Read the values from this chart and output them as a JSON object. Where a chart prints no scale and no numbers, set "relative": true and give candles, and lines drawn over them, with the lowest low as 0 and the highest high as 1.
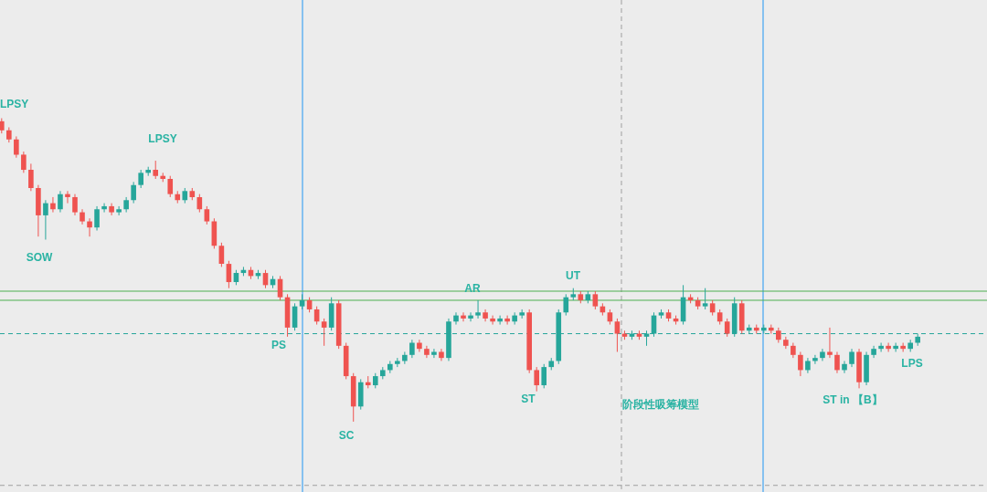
{
  "chart_data": {
    "type": "candlestick",
    "relative": true,
    "categories": [
      null,
      null,
      null,
      null,
      null,
      null,
      null,
      null,
      null,
      null,
      null,
      null,
      null,
      null,
      null,
      null,
      null,
      null,
      null,
      null,
      null,
      null,
      null,
      null,
      null,
      null,
      null,
      null,
      null,
      null,
      null,
      null,
      null,
      null,
      null,
      null,
      null,
      null,
      null,
      null,
      null,
      null,
      null,
      null,
      null,
      null,
      null,
      null,
      null,
      null,
      null,
      null,
      null,
      null,
      null,
      null,
      null,
      null,
      null,
      null,
      null,
      null,
      null,
      null,
      null,
      null,
      null,
      null,
      null,
      null,
      null,
      null,
      null,
      null,
      null,
      null,
      null,
      null,
      null,
      null,
      null,
      null,
      null,
      null,
      null,
      null,
      null,
      null,
      null,
      null,
      null,
      null,
      null,
      null,
      null,
      null,
      null,
      null,
      null,
      null,
      null,
      null,
      null,
      null,
      null,
      null,
      null,
      null,
      null,
      null,
      null,
      null,
      null,
      null,
      null,
      null,
      null,
      null,
      null,
      null,
      null,
      null,
      null,
      null,
      null,
      null
    ],
    "ohlc": [
      [
        0.99,
        1.0,
        0.95,
        0.96
      ],
      [
        0.96,
        0.97,
        0.92,
        0.93
      ],
      [
        0.93,
        0.94,
        0.87,
        0.88
      ],
      [
        0.88,
        0.89,
        0.82,
        0.83
      ],
      [
        0.83,
        0.85,
        0.76,
        0.77
      ],
      [
        0.77,
        0.78,
        0.61,
        0.68
      ],
      [
        0.68,
        0.73,
        0.6,
        0.72
      ],
      [
        0.72,
        0.74,
        0.69,
        0.7
      ],
      [
        0.7,
        0.76,
        0.69,
        0.75
      ],
      [
        0.75,
        0.76,
        0.72,
        0.74
      ],
      [
        0.74,
        0.75,
        0.68,
        0.69
      ],
      [
        0.69,
        0.7,
        0.65,
        0.66
      ],
      [
        0.66,
        0.67,
        0.61,
        0.64
      ],
      [
        0.64,
        0.71,
        0.63,
        0.7
      ],
      [
        0.7,
        0.72,
        0.69,
        0.71
      ],
      [
        0.71,
        0.72,
        0.68,
        0.69
      ],
      [
        0.69,
        0.71,
        0.68,
        0.7
      ],
      [
        0.7,
        0.74,
        0.69,
        0.73
      ],
      [
        0.73,
        0.79,
        0.72,
        0.78
      ],
      [
        0.78,
        0.83,
        0.77,
        0.82
      ],
      [
        0.82,
        0.84,
        0.81,
        0.83
      ],
      [
        0.83,
        0.86,
        0.8,
        0.81
      ],
      [
        0.81,
        0.82,
        0.79,
        0.8
      ],
      [
        0.8,
        0.81,
        0.74,
        0.75
      ],
      [
        0.75,
        0.76,
        0.72,
        0.73
      ],
      [
        0.73,
        0.77,
        0.72,
        0.76
      ],
      [
        0.76,
        0.77,
        0.73,
        0.74
      ],
      [
        0.74,
        0.75,
        0.69,
        0.7
      ],
      [
        0.7,
        0.71,
        0.65,
        0.66
      ],
      [
        0.66,
        0.67,
        0.57,
        0.58
      ],
      [
        0.58,
        0.59,
        0.51,
        0.52
      ],
      [
        0.52,
        0.53,
        0.44,
        0.46
      ],
      [
        0.46,
        0.5,
        0.45,
        0.49
      ],
      [
        0.49,
        0.51,
        0.48,
        0.5
      ],
      [
        0.5,
        0.51,
        0.47,
        0.48
      ],
      [
        0.48,
        0.5,
        0.47,
        0.49
      ],
      [
        0.49,
        0.5,
        0.44,
        0.45
      ],
      [
        0.45,
        0.48,
        0.44,
        0.47
      ],
      [
        0.47,
        0.48,
        0.4,
        0.41
      ],
      [
        0.41,
        0.42,
        0.28,
        0.31
      ],
      [
        0.31,
        0.39,
        0.3,
        0.38
      ],
      [
        0.38,
        0.42,
        0.37,
        0.4
      ],
      [
        0.4,
        0.41,
        0.36,
        0.37
      ],
      [
        0.37,
        0.38,
        0.32,
        0.33
      ],
      [
        0.33,
        0.34,
        0.25,
        0.31
      ],
      [
        0.31,
        0.41,
        0.3,
        0.39
      ],
      [
        0.39,
        0.4,
        0.24,
        0.25
      ],
      [
        0.25,
        0.26,
        0.14,
        0.15
      ],
      [
        0.15,
        0.16,
        0.0,
        0.05
      ],
      [
        0.05,
        0.14,
        0.04,
        0.13
      ],
      [
        0.13,
        0.15,
        0.11,
        0.12
      ],
      [
        0.12,
        0.16,
        0.11,
        0.15
      ],
      [
        0.15,
        0.18,
        0.14,
        0.17
      ],
      [
        0.17,
        0.2,
        0.16,
        0.19
      ],
      [
        0.19,
        0.21,
        0.18,
        0.2
      ],
      [
        0.2,
        0.23,
        0.19,
        0.22
      ],
      [
        0.22,
        0.27,
        0.21,
        0.26
      ],
      [
        0.26,
        0.27,
        0.23,
        0.24
      ],
      [
        0.24,
        0.25,
        0.21,
        0.22
      ],
      [
        0.22,
        0.24,
        0.21,
        0.23
      ],
      [
        0.23,
        0.24,
        0.2,
        0.21
      ],
      [
        0.21,
        0.34,
        0.2,
        0.33
      ],
      [
        0.33,
        0.36,
        0.32,
        0.35
      ],
      [
        0.35,
        0.36,
        0.33,
        0.34
      ],
      [
        0.34,
        0.36,
        0.33,
        0.35
      ],
      [
        0.35,
        0.4,
        0.34,
        0.36
      ],
      [
        0.36,
        0.37,
        0.33,
        0.34
      ],
      [
        0.34,
        0.35,
        0.32,
        0.33
      ],
      [
        0.33,
        0.35,
        0.32,
        0.34
      ],
      [
        0.34,
        0.35,
        0.32,
        0.33
      ],
      [
        0.33,
        0.36,
        0.32,
        0.35
      ],
      [
        0.35,
        0.37,
        0.34,
        0.36
      ],
      [
        0.36,
        0.37,
        0.16,
        0.17
      ],
      [
        0.17,
        0.18,
        0.1,
        0.12
      ],
      [
        0.12,
        0.19,
        0.11,
        0.18
      ],
      [
        0.18,
        0.21,
        0.17,
        0.2
      ],
      [
        0.2,
        0.37,
        0.19,
        0.36
      ],
      [
        0.36,
        0.42,
        0.35,
        0.41
      ],
      [
        0.41,
        0.44,
        0.4,
        0.42
      ],
      [
        0.42,
        0.43,
        0.39,
        0.4
      ],
      [
        0.4,
        0.43,
        0.39,
        0.42
      ],
      [
        0.42,
        0.43,
        0.37,
        0.38
      ],
      [
        0.38,
        0.39,
        0.35,
        0.36
      ],
      [
        0.36,
        0.37,
        0.32,
        0.33
      ],
      [
        0.33,
        0.34,
        0.23,
        0.29
      ],
      [
        0.29,
        0.3,
        0.27,
        0.28
      ],
      [
        0.28,
        0.3,
        0.27,
        0.29
      ],
      [
        0.29,
        0.3,
        0.27,
        0.28
      ],
      [
        0.28,
        0.3,
        0.25,
        0.29
      ],
      [
        0.29,
        0.36,
        0.28,
        0.35
      ],
      [
        0.35,
        0.37,
        0.34,
        0.36
      ],
      [
        0.36,
        0.37,
        0.33,
        0.34
      ],
      [
        0.34,
        0.35,
        0.32,
        0.33
      ],
      [
        0.33,
        0.45,
        0.32,
        0.41
      ],
      [
        0.41,
        0.42,
        0.39,
        0.4
      ],
      [
        0.4,
        0.41,
        0.37,
        0.38
      ],
      [
        0.38,
        0.44,
        0.37,
        0.39
      ],
      [
        0.39,
        0.4,
        0.35,
        0.36
      ],
      [
        0.36,
        0.37,
        0.32,
        0.33
      ],
      [
        0.33,
        0.34,
        0.28,
        0.29
      ],
      [
        0.29,
        0.41,
        0.28,
        0.39
      ],
      [
        0.39,
        0.4,
        0.29,
        0.3
      ],
      [
        0.3,
        0.32,
        0.29,
        0.31
      ],
      [
        0.31,
        0.32,
        0.29,
        0.3
      ],
      [
        0.3,
        0.32,
        0.29,
        0.31
      ],
      [
        0.31,
        0.32,
        0.29,
        0.3
      ],
      [
        0.3,
        0.31,
        0.26,
        0.27
      ],
      [
        0.27,
        0.28,
        0.24,
        0.25
      ],
      [
        0.25,
        0.26,
        0.21,
        0.22
      ],
      [
        0.22,
        0.23,
        0.15,
        0.17
      ],
      [
        0.17,
        0.21,
        0.16,
        0.2
      ],
      [
        0.2,
        0.22,
        0.19,
        0.21
      ],
      [
        0.21,
        0.24,
        0.2,
        0.23
      ],
      [
        0.23,
        0.31,
        0.21,
        0.22
      ],
      [
        0.22,
        0.23,
        0.16,
        0.17
      ],
      [
        0.17,
        0.2,
        0.16,
        0.19
      ],
      [
        0.19,
        0.24,
        0.18,
        0.23
      ],
      [
        0.23,
        0.24,
        0.11,
        0.13
      ],
      [
        0.13,
        0.23,
        0.12,
        0.22
      ],
      [
        0.22,
        0.25,
        0.21,
        0.24
      ],
      [
        0.24,
        0.26,
        0.23,
        0.25
      ],
      [
        0.25,
        0.26,
        0.23,
        0.24
      ],
      [
        0.24,
        0.26,
        0.23,
        0.25
      ],
      [
        0.25,
        0.26,
        0.23,
        0.24
      ],
      [
        0.24,
        0.27,
        0.23,
        0.26
      ],
      [
        0.26,
        0.29,
        0.25,
        0.28
      ]
    ],
    "colors": [
      "#ef5350",
      "#ef5350",
      "#ef5350",
      "#ef5350",
      "#ef5350",
      "#ef5350",
      "#26a69a",
      "#ef5350",
      "#26a69a",
      "#ef5350",
      "#ef5350",
      "#ef5350",
      "#ef5350",
      "#26a69a",
      "#26a69a",
      "#ef5350",
      "#26a69a",
      "#26a69a",
      "#26a69a",
      "#26a69a",
      "#26a69a",
      "#ef5350",
      "#ef5350",
      "#ef5350",
      "#ef5350",
      "#26a69a",
      "#ef5350",
      "#ef5350",
      "#ef5350",
      "#ef5350",
      "#ef5350",
      "#ef5350",
      "#26a69a",
      "#26a69a",
      "#ef5350",
      "#26a69a",
      "#ef5350",
      "#26a69a",
      "#ef5350",
      "#ef5350",
      "#26a69a",
      "#26a69a",
      "#ef5350",
      "#ef5350",
      "#ef5350",
      "#26a69a",
      "#ef5350",
      "#ef5350",
      "#ef5350",
      "#26a69a",
      "#ef5350",
      "#26a69a",
      "#26a69a",
      "#26a69a",
      "#26a69a",
      "#26a69a",
      "#26a69a",
      "#ef5350",
      "#ef5350",
      "#26a69a",
      "#ef5350",
      "#26a69a",
      "#26a69a",
      "#ef5350",
      "#26a69a",
      "#26a69a",
      "#ef5350",
      "#ef5350",
      "#26a69a",
      "#ef5350",
      "#26a69a",
      "#26a69a",
      "#ef5350",
      "#ef5350",
      "#26a69a",
      "#26a69a",
      "#26a69a",
      "#26a69a",
      "#26a69a",
      "#ef5350",
      "#26a69a",
      "#ef5350",
      "#ef5350",
      "#ef5350",
      "#ef5350",
      "#ef5350",
      "#26a69a",
      "#ef5350",
      "#26a69a",
      "#26a69a",
      "#26a69a",
      "#ef5350",
      "#ef5350",
      "#26a69a",
      "#ef5350",
      "#ef5350",
      "#26a69a",
      "#ef5350",
      "#ef5350",
      "#ef5350",
      "#26a69a",
      "#ef5350",
      "#26a69a",
      "#ef5350",
      "#26a69a",
      "#ef5350",
      "#ef5350",
      "#ef5350",
      "#ef5350",
      "#ef5350",
      "#26a69a",
      "#26a69a",
      "#26a69a",
      "#ef5350",
      "#ef5350",
      "#26a69a",
      "#26a69a",
      "#ef5350",
      "#26a69a",
      "#26a69a",
      "#26a69a",
      "#ef5350",
      "#26a69a",
      "#ef5350",
      "#26a69a",
      "#26a69a"
    ],
    "ref_lines": [
      {
        "axis": "y",
        "value": 0.43,
        "color": "#4caf50",
        "line_style": "solid"
      },
      {
        "axis": "y",
        "value": 0.4,
        "color": "#4caf50",
        "line_style": "solid"
      },
      {
        "axis": "y",
        "value": 0.29,
        "color": "#26a69a",
        "line_style": "dashed"
      },
      {
        "axis": "y",
        "value": -0.21,
        "color": "#9e9e9e",
        "line_style": "dashed"
      }
    ],
    "annotations": [
      "LPSY",
      "LPSY",
      "SOW",
      "PS",
      "SC",
      "AR",
      "ST",
      "UT",
      "ST in 【B】",
      "LPS",
      "阶段性吸筹模型"
    ]
  }
}
